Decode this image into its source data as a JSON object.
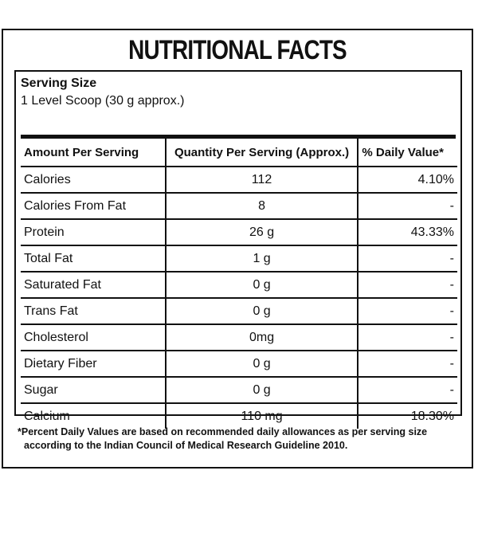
{
  "title": "NUTRITIONAL FACTS",
  "serving": {
    "label": "Serving Size",
    "value": "1 Level Scoop (30 g approx.)"
  },
  "table": {
    "headers": {
      "name": "Amount Per Serving",
      "qty": "Quantity Per Serving (Approx.)",
      "dv": "% Daily Value*"
    },
    "rows": [
      {
        "name": "Calories",
        "qty": "112",
        "dv": "4.10%"
      },
      {
        "name": "Calories From Fat",
        "qty": "8",
        "dv": "-"
      },
      {
        "name": "Protein",
        "qty": "26 g",
        "dv": "43.33%"
      },
      {
        "name": "Total Fat",
        "qty": "1 g",
        "dv": "-"
      },
      {
        "name": "Saturated Fat",
        "qty": "0 g",
        "dv": "-"
      },
      {
        "name": "Trans Fat",
        "qty": "0 g",
        "dv": "-"
      },
      {
        "name": "Cholesterol",
        "qty": "0mg",
        "dv": "-"
      },
      {
        "name": "Dietary Fiber",
        "qty": "0 g",
        "dv": "-"
      },
      {
        "name": "Sugar",
        "qty": "0 g",
        "dv": "-"
      },
      {
        "name": "Calcium",
        "qty": "110 mg",
        "dv": "18.30%"
      }
    ]
  },
  "footnote": {
    "line1": "*Percent Daily Values are based on recommended daily allowances as per serving size",
    "line2": "according to the Indian Council of Medical Research Guideline 2010."
  }
}
